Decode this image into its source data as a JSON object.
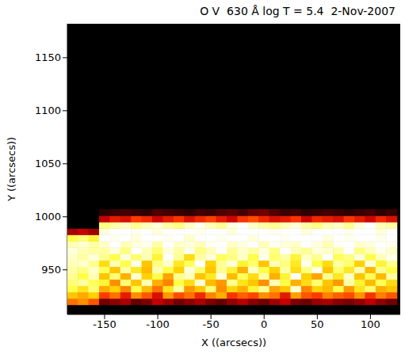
{
  "chart_data": {
    "type": "heatmap",
    "title": "O V  630 Å log T = 5.4  2-Nov-2007",
    "x_label": "X ((arcsecs))",
    "y_label": "Y ((arcsecs))",
    "xlim": [
      -185,
      128
    ],
    "ylim": [
      908,
      1182
    ],
    "xticks": [
      -150,
      -100,
      -50,
      0,
      50,
      100
    ],
    "yticks": [
      950,
      1000,
      1050,
      1100,
      1150
    ],
    "zlim": [
      0,
      100
    ],
    "x": [
      -180,
      -170,
      -160,
      -150,
      -140,
      -130,
      -120,
      -110,
      -100,
      -90,
      -80,
      -70,
      -60,
      -50,
      -40,
      -30,
      -20,
      -10,
      0,
      10,
      20,
      30,
      40,
      50,
      60,
      70,
      80,
      90,
      100,
      110,
      120
    ],
    "y": [
      920,
      926,
      932,
      938,
      944,
      950,
      956,
      962,
      968,
      974,
      980,
      986,
      992,
      998,
      1004
    ],
    "cells": [
      [
        55,
        60,
        50,
        20,
        25,
        30,
        18,
        22,
        35,
        28,
        20,
        25,
        30,
        22,
        18,
        26,
        32,
        24,
        20,
        28,
        35,
        22,
        19,
        27,
        30,
        24,
        21,
        26,
        33,
        25,
        20
      ],
      [
        70,
        65,
        72,
        45,
        55,
        40,
        60,
        50,
        38,
        62,
        48,
        55,
        42,
        58,
        66,
        44,
        52,
        47,
        60,
        55,
        40,
        63,
        50,
        45,
        58,
        52,
        48,
        61,
        44,
        57,
        50
      ],
      [
        80,
        75,
        85,
        65,
        72,
        58,
        80,
        68,
        55,
        75,
        90,
        62,
        70,
        85,
        60,
        73,
        66,
        78,
        88,
        64,
        70,
        95,
        58,
        72,
        68,
        80,
        62,
        75,
        84,
        66,
        70
      ],
      [
        85,
        90,
        82,
        78,
        60,
        85,
        70,
        92,
        66,
        58,
        80,
        74,
        95,
        68,
        62,
        88,
        75,
        70,
        60,
        92,
        80,
        66,
        74,
        85,
        70,
        62,
        90,
        78,
        68,
        82,
        74
      ],
      [
        88,
        80,
        92,
        70,
        85,
        66,
        95,
        72,
        80,
        64,
        88,
        92,
        70,
        76,
        96,
        68,
        82,
        74,
        90,
        66,
        78,
        100,
        72,
        64,
        88,
        76,
        94,
        70,
        82,
        68,
        90
      ],
      [
        90,
        86,
        94,
        82,
        70,
        90,
        76,
        68,
        92,
        80,
        72,
        96,
        84,
        70,
        88,
        78,
        66,
        94,
        80,
        72,
        90,
        74,
        86,
        98,
        70,
        84,
        76,
        92,
        68,
        88,
        80
      ],
      [
        92,
        95,
        88,
        74,
        92,
        80,
        98,
        70,
        86,
        94,
        76,
        82,
        100,
        72,
        88,
        96,
        78,
        84,
        70,
        92,
        86,
        76,
        98,
        80,
        74,
        90,
        84,
        72,
        96,
        78,
        88
      ],
      [
        94,
        90,
        96,
        88,
        80,
        96,
        84,
        92,
        78,
        100,
        88,
        74,
        90,
        96,
        82,
        86,
        94,
        80,
        98,
        84,
        90,
        78,
        94,
        88,
        100,
        82,
        86,
        96,
        80,
        92,
        98
      ],
      [
        96,
        92,
        90,
        90,
        96,
        86,
        100,
        92,
        84,
        96,
        90,
        98,
        86,
        92,
        100,
        88,
        94,
        90,
        96,
        86,
        100,
        92,
        88,
        96,
        94,
        90,
        100,
        86,
        92,
        98,
        94
      ],
      [
        92,
        95,
        90,
        94,
        100,
        92,
        96,
        98,
        90,
        100,
        94,
        96,
        92,
        98,
        100,
        94,
        96,
        100,
        92,
        98,
        96,
        94,
        100,
        96,
        92,
        98,
        100,
        94,
        96,
        100,
        98
      ],
      [
        80,
        85,
        78,
        100,
        98,
        100,
        96,
        100,
        100,
        98,
        100,
        94,
        100,
        100,
        98,
        100,
        100,
        96,
        100,
        100,
        98,
        100,
        100,
        100,
        96,
        100,
        98,
        100,
        100,
        98,
        100
      ],
      [
        30,
        35,
        28,
        96,
        100,
        100,
        98,
        100,
        96,
        100,
        100,
        100,
        98,
        100,
        100,
        96,
        100,
        100,
        100,
        98,
        100,
        100,
        96,
        100,
        100,
        100,
        98,
        100,
        100,
        96,
        100
      ],
      [
        0,
        0,
        0,
        86,
        90,
        94,
        88,
        92,
        96,
        90,
        86,
        94,
        98,
        92,
        88,
        96,
        100,
        94,
        90,
        88,
        92,
        96,
        90,
        86,
        92,
        94,
        88,
        96,
        100,
        92,
        90
      ],
      [
        0,
        0,
        0,
        35,
        40,
        38,
        45,
        42,
        36,
        40,
        44,
        38,
        42,
        46,
        40,
        36,
        44,
        48,
        42,
        38,
        40,
        44,
        36,
        42,
        40,
        38,
        44,
        40,
        36,
        42,
        38
      ],
      [
        0,
        0,
        0,
        8,
        10,
        12,
        10,
        8,
        14,
        12,
        10,
        8,
        12,
        10,
        14,
        16,
        12,
        18,
        20,
        14,
        10,
        12,
        8,
        10,
        12,
        10,
        8,
        10,
        12,
        8,
        10
      ]
    ]
  }
}
